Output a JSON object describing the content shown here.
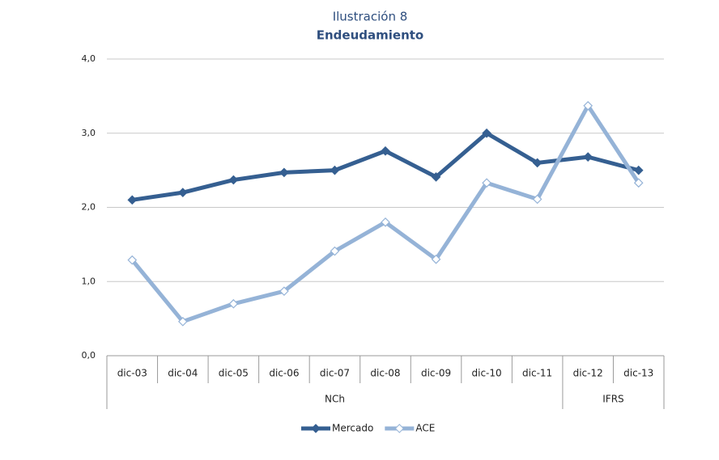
{
  "chart_data": {
    "type": "line",
    "title": "Ilustración 8",
    "subtitle": "Endeudamiento",
    "categories": [
      "dic-03",
      "dic-04",
      "dic-05",
      "dic-06",
      "dic-07",
      "dic-08",
      "dic-09",
      "dic-10",
      "dic-11",
      "dic-12",
      "dic-13"
    ],
    "category_groups": [
      "NCh",
      "NCh",
      "NCh",
      "NCh",
      "NCh",
      "NCh",
      "NCh",
      "NCh",
      "NCh",
      "IFRS",
      "IFRS"
    ],
    "series": [
      {
        "name": "Mercado",
        "color": "#355f91",
        "marker": "filled",
        "values": [
          2.1,
          2.2,
          2.37,
          2.47,
          2.5,
          2.76,
          2.41,
          3.0,
          2.6,
          2.68,
          2.5
        ]
      },
      {
        "name": "ACE",
        "color": "#95b3d7",
        "marker": "hollow",
        "values": [
          1.29,
          0.46,
          0.7,
          0.87,
          1.41,
          1.8,
          1.3,
          2.33,
          2.11,
          3.37,
          2.33
        ]
      }
    ],
    "ylim": [
      0,
      4
    ],
    "yticks": [
      {
        "value": 0,
        "label": "0,0"
      },
      {
        "value": 1,
        "label": "1,0"
      },
      {
        "value": 2,
        "label": "2,0"
      },
      {
        "value": 3,
        "label": "3,0"
      },
      {
        "value": 4,
        "label": "4,0"
      }
    ],
    "grid": true,
    "legend": "bottom"
  }
}
